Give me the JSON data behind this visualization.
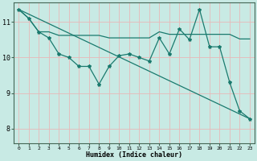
{
  "xlabel": "Humidex (Indice chaleur)",
  "ylabel": "",
  "bg_color": "#c8eae4",
  "grid_color": "#e8b8b8",
  "line_color": "#1a7a6e",
  "xlim": [
    -0.5,
    23.5
  ],
  "ylim": [
    7.6,
    11.55
  ],
  "yticks": [
    8,
    9,
    10,
    11
  ],
  "xticks": [
    0,
    1,
    2,
    3,
    4,
    5,
    6,
    7,
    8,
    9,
    10,
    11,
    12,
    13,
    14,
    15,
    16,
    17,
    18,
    19,
    20,
    21,
    22,
    23
  ],
  "line1_x": [
    0,
    1,
    2,
    3,
    4,
    5,
    6,
    7,
    8,
    9,
    10,
    11,
    12,
    13,
    14,
    15,
    16,
    17,
    18,
    19,
    20,
    21,
    22,
    23
  ],
  "line1_y": [
    11.35,
    11.1,
    10.72,
    10.72,
    10.62,
    10.62,
    10.62,
    10.62,
    10.62,
    10.55,
    10.55,
    10.55,
    10.55,
    10.55,
    10.72,
    10.65,
    10.65,
    10.65,
    10.65,
    10.65,
    10.65,
    10.65,
    10.52,
    10.52
  ],
  "line2_x": [
    0,
    1,
    2,
    3,
    4,
    5,
    6,
    7,
    8,
    9,
    10,
    11,
    12,
    13,
    14,
    15,
    16,
    17,
    18,
    19,
    20,
    21,
    22,
    23
  ],
  "line2_y": [
    11.35,
    11.1,
    10.72,
    10.55,
    10.1,
    10.0,
    9.75,
    9.75,
    9.25,
    9.75,
    10.05,
    10.1,
    10.0,
    9.9,
    10.55,
    10.1,
    10.8,
    10.5,
    11.35,
    10.3,
    10.3,
    9.3,
    8.5,
    8.28
  ],
  "line3_x": [
    0,
    23
  ],
  "line3_y": [
    11.35,
    8.28
  ]
}
